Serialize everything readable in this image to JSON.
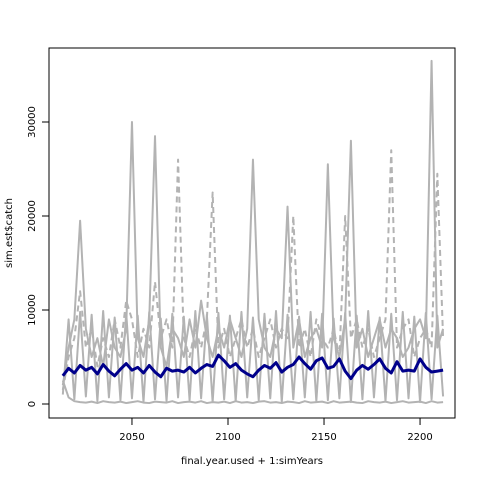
{
  "chart_data": {
    "type": "line",
    "xlabel": "final.year.used + 1:simYears",
    "ylabel": "sim.est$catch",
    "xlim": [
      2006.8,
      2218.2
    ],
    "xticks": [
      2050,
      2100,
      2150,
      2200
    ],
    "ylim": [
      -1489,
      37872
    ],
    "yticks": [
      0,
      10000,
      20000,
      30000
    ],
    "x": [
      2014,
      2017,
      2020,
      2023,
      2026,
      2029,
      2032,
      2035,
      2038,
      2041,
      2044,
      2047,
      2050,
      2053,
      2056,
      2059,
      2062,
      2065,
      2068,
      2071,
      2074,
      2077,
      2080,
      2083,
      2086,
      2089,
      2092,
      2095,
      2098,
      2101,
      2104,
      2107,
      2110,
      2113,
      2116,
      2119,
      2122,
      2125,
      2128,
      2131,
      2134,
      2137,
      2140,
      2143,
      2146,
      2149,
      2152,
      2155,
      2158,
      2161,
      2164,
      2167,
      2170,
      2173,
      2176,
      2179,
      2182,
      2185,
      2188,
      2191,
      2194,
      2197,
      2200,
      2203,
      2206,
      2209,
      2212
    ],
    "series": [
      {
        "color": "#b3b3b3",
        "dash": false,
        "width": 2,
        "values": [
          2000,
          6000,
          9000,
          19500,
          8000,
          5000,
          7000,
          4000,
          9000,
          6000,
          5000,
          8000,
          30000,
          7000,
          5000,
          9000,
          28500,
          6000,
          4000,
          8000,
          7000,
          5000,
          9000,
          6000,
          11000,
          7000,
          5000,
          8000,
          6000,
          9000,
          7000,
          5000,
          8000,
          26000,
          9000,
          6000,
          5000,
          8000,
          7000,
          21000,
          6000,
          9000,
          5000,
          7000,
          8000,
          6000,
          25500,
          7000,
          5000,
          9000,
          28000,
          6000,
          8000,
          5000,
          7000,
          9000,
          6000,
          8000,
          7000,
          5000,
          6000,
          8000,
          9000,
          7000,
          36500,
          6000,
          8000
        ]
      },
      {
        "color": "#b3b3b3",
        "dash": true,
        "width": 2,
        "values": [
          1500,
          5000,
          7000,
          12000,
          6000,
          8000,
          4000,
          7000,
          5000,
          9000,
          6000,
          11000,
          9000,
          5000,
          8000,
          6000,
          13000,
          7000,
          9000,
          6000,
          26000,
          7000,
          5000,
          8000,
          6000,
          9000,
          22500,
          6000,
          8000,
          5000,
          7000,
          9000,
          6000,
          8000,
          5000,
          7000,
          9000,
          6000,
          8000,
          7000,
          20000,
          6000,
          8000,
          5000,
          9000,
          7000,
          6000,
          8000,
          5000,
          20000,
          7000,
          9000,
          6000,
          8000,
          5000,
          7000,
          9000,
          27000,
          6000,
          8000,
          9000,
          5000,
          7000,
          8000,
          6000,
          24500,
          7000
        ]
      },
      {
        "color": "#b3b3b3",
        "dash": false,
        "width": 2,
        "values": [
          1000,
          9000,
          500,
          9800,
          800,
          9500,
          300,
          9900,
          700,
          9200,
          400,
          9700,
          600,
          9400,
          200,
          9800,
          500,
          9100,
          300,
          9600,
          700,
          9300,
          400,
          9900,
          600,
          9500,
          200,
          9700,
          500,
          9400,
          300,
          9800,
          700,
          9200,
          400,
          9600,
          600,
          9900,
          200,
          9500,
          500,
          9300,
          700,
          9800,
          300,
          9600,
          400,
          9100,
          600,
          9700,
          200,
          9400,
          500,
          9900,
          700,
          9200,
          300,
          9600,
          400,
          9800,
          600,
          9300,
          200,
          9700,
          500,
          9400,
          800
        ]
      },
      {
        "color": "#b3b3b3",
        "dash": false,
        "width": 2,
        "values": [
          2500,
          700,
          300,
          200,
          150,
          250,
          100,
          300,
          200,
          150,
          250,
          100,
          200,
          300,
          150,
          100,
          250,
          200,
          150,
          300,
          100,
          200,
          250,
          150,
          300,
          100,
          200,
          150,
          250,
          100,
          300,
          150,
          200,
          100,
          250,
          300,
          150,
          200,
          100,
          250,
          200,
          100,
          300,
          150,
          200,
          250,
          100,
          300,
          150,
          200,
          250,
          150,
          100,
          300,
          200,
          150,
          250,
          100,
          200,
          300,
          150,
          200,
          250,
          100,
          300,
          150,
          200
        ]
      },
      {
        "color": "#00008b",
        "dash": false,
        "width": 3,
        "values": [
          3000,
          3800,
          3300,
          4100,
          3600,
          3900,
          3200,
          4200,
          3500,
          3000,
          3700,
          4300,
          3600,
          3900,
          3300,
          4100,
          3400,
          2900,
          3800,
          3500,
          3600,
          3400,
          3900,
          3300,
          3800,
          4200,
          4000,
          5200,
          4600,
          3900,
          4300,
          3600,
          3200,
          2900,
          3600,
          4100,
          3800,
          4400,
          3400,
          3900,
          4200,
          5000,
          4300,
          3700,
          4600,
          4900,
          3800,
          4000,
          4800,
          3500,
          2700,
          3600,
          4100,
          3700,
          4200,
          4800,
          3800,
          3300,
          4500,
          3500,
          3600,
          3500,
          4800,
          3900,
          3400,
          3500,
          3600
        ]
      }
    ]
  }
}
